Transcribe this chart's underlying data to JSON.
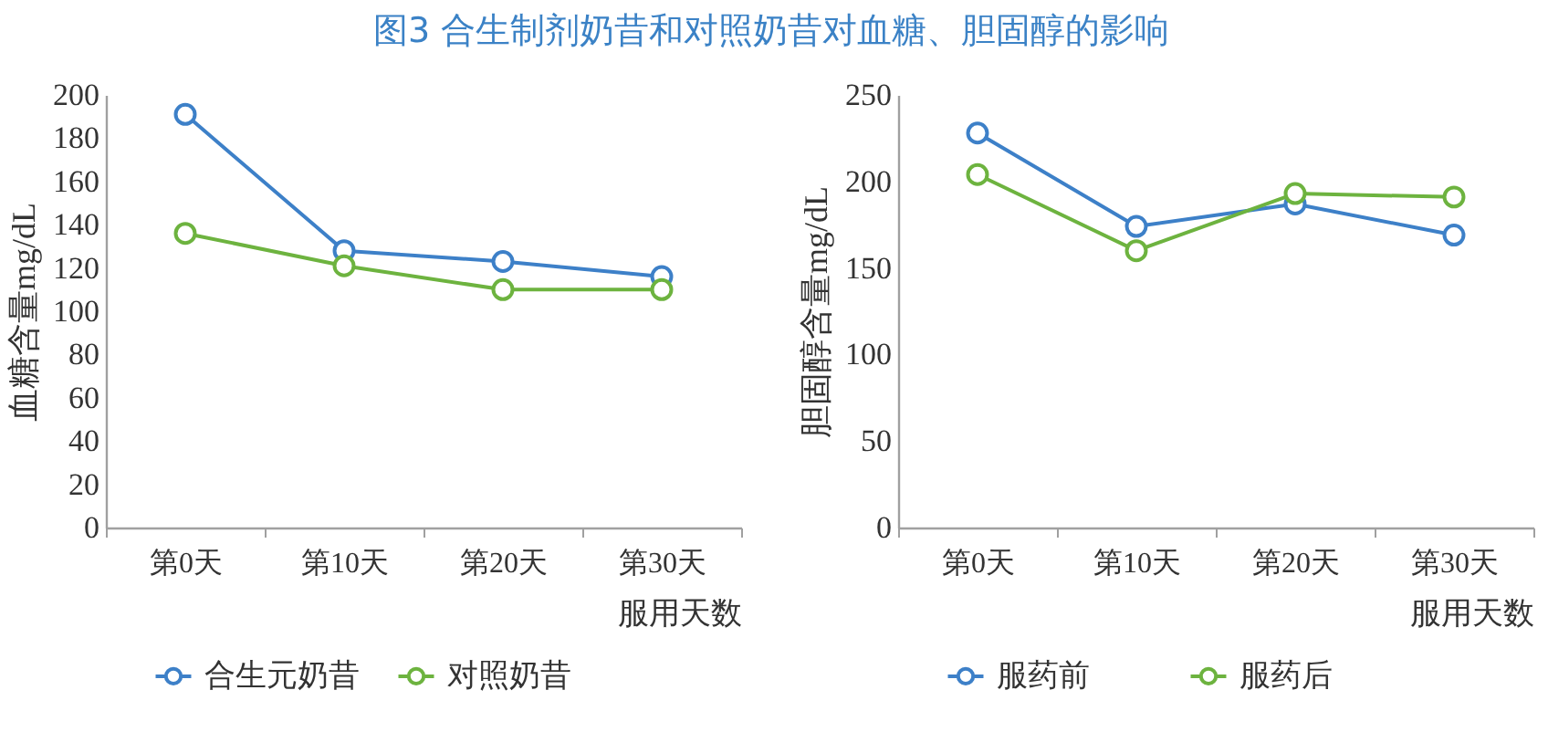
{
  "chart_data": [
    {
      "type": "line",
      "title": "图3 合生制剂奶昔和对照奶昔对血糖、胆固醇的影响",
      "xlabel": "服用天数",
      "ylabel": "血糖含量mg/dL",
      "categories": [
        "第0天",
        "第10天",
        "第20天",
        "第30天"
      ],
      "series": [
        {
          "name": "合生元奶昔",
          "color": "#3d80c8",
          "values": [
            191,
            128,
            123,
            116
          ]
        },
        {
          "name": "对照奶昔",
          "color": "#6db33f",
          "values": [
            136,
            121,
            110,
            110
          ]
        }
      ],
      "ylim": [
        0,
        200
      ],
      "yticks": [
        0,
        20,
        40,
        60,
        80,
        100,
        120,
        140,
        160,
        180,
        200
      ],
      "marker": "circle",
      "line_style": "solid",
      "legend": "bottom"
    },
    {
      "type": "line",
      "xlabel": "服用天数",
      "ylabel": "胆固醇含量mg/dL",
      "categories": [
        "第0天",
        "第10天",
        "第20天",
        "第30天"
      ],
      "series": [
        {
          "name": "服药前",
          "color": "#3d80c8",
          "values": [
            228,
            174,
            187,
            169
          ]
        },
        {
          "name": "服药后",
          "color": "#6db33f",
          "values": [
            204,
            160,
            193,
            191
          ]
        }
      ],
      "ylim": [
        0,
        250
      ],
      "yticks": [
        0,
        50,
        100,
        150,
        200,
        250
      ],
      "marker": "circle",
      "line_style": "solid",
      "legend": "bottom"
    }
  ]
}
